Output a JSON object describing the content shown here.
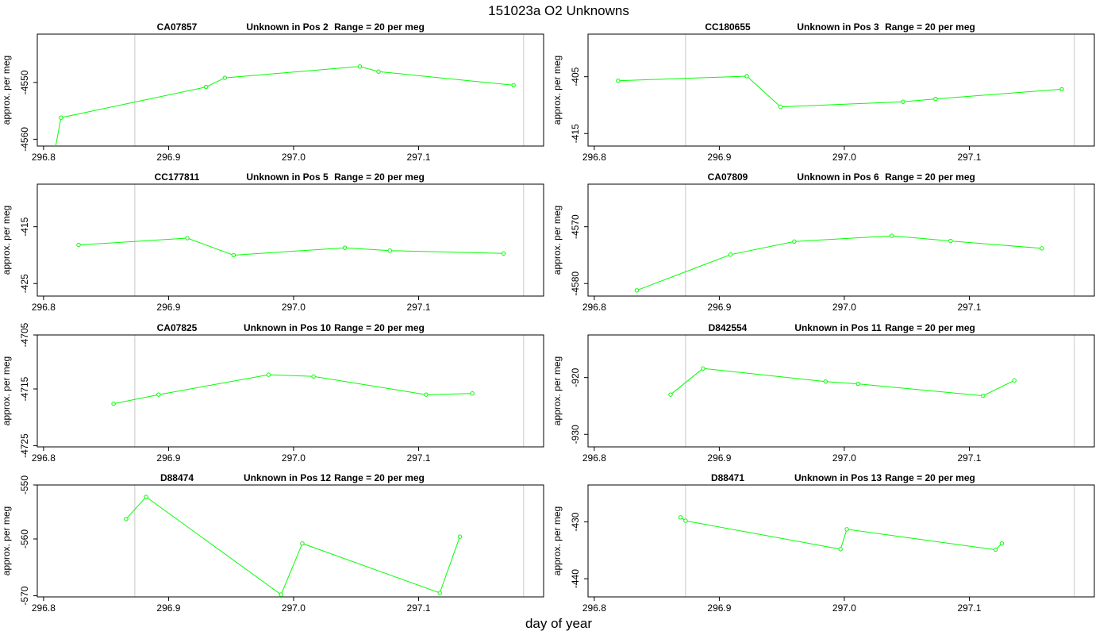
{
  "figure": {
    "title": "151023a  O2 Unknowns",
    "xlabel": "day of year"
  },
  "style": {
    "line_color": "#00ff00",
    "frame_color": "#000000",
    "vline_color": "#c8c8c8",
    "text_color": "#000000"
  },
  "chart_data": [
    {
      "type": "line",
      "title_parts": [
        "CA07857",
        "Unknown in Pos 2",
        "Range = 20 per meg"
      ],
      "ylabel": "approx. per meg",
      "xlim": [
        296.795,
        297.2
      ],
      "xticks": [
        "296.8",
        "296.9",
        "297.0",
        "297.1"
      ],
      "ylim": [
        -4561.2,
        -4541.5
      ],
      "yticks": [
        "-4550",
        "-4560"
      ],
      "vlines": [
        296.873,
        297.184
      ],
      "x": [
        296.809,
        296.814,
        296.93,
        296.945,
        297.053,
        297.068,
        297.176
      ],
      "y": [
        -4562.0,
        -4556.2,
        -4550.8,
        -4549.2,
        -4547.2,
        -4548.1,
        -4550.5
      ]
    },
    {
      "type": "line",
      "title_parts": [
        "CC180655",
        "Unknown in Pos 3",
        "Range = 20 per meg"
      ],
      "ylabel": "approx. per meg",
      "xlim": [
        296.795,
        297.2
      ],
      "xticks": [
        "296.8",
        "296.9",
        "297.0",
        "297.1"
      ],
      "ylim": [
        -417.2,
        -397.5
      ],
      "yticks": [
        "-405",
        "-415"
      ],
      "vlines": [
        296.873,
        297.184
      ],
      "x": [
        296.819,
        296.922,
        296.949,
        297.047,
        297.073,
        297.174
      ],
      "y": [
        -405.7,
        -404.9,
        -410.3,
        -409.4,
        -408.9,
        -407.2
      ]
    },
    {
      "type": "line",
      "title_parts": [
        "CC177811",
        "Unknown in Pos 5",
        "Range = 20 per meg"
      ],
      "ylabel": "approx. per meg",
      "xlim": [
        296.795,
        297.2
      ],
      "xticks": [
        "296.8",
        "296.9",
        "297.0",
        "297.1"
      ],
      "ylim": [
        -427.2,
        -407.5
      ],
      "yticks": [
        "-415",
        "-425"
      ],
      "vlines": [
        296.873,
        297.184
      ],
      "x": [
        296.828,
        296.915,
        296.952,
        297.041,
        297.077,
        297.168
      ],
      "y": [
        -418.2,
        -417.0,
        -420.0,
        -418.7,
        -419.2,
        -419.7
      ]
    },
    {
      "type": "line",
      "title_parts": [
        "CA07809",
        "Unknown in Pos 6",
        "Range = 20 per meg"
      ],
      "ylabel": "approx. per meg",
      "xlim": [
        296.795,
        297.2
      ],
      "xticks": [
        "296.8",
        "296.9",
        "297.0",
        "297.1"
      ],
      "ylim": [
        -4582.2,
        -4562.5
      ],
      "yticks": [
        "-4570",
        "-4580"
      ],
      "vlines": [
        296.873,
        297.184
      ],
      "x": [
        296.834,
        296.909,
        296.96,
        297.038,
        297.085,
        297.158
      ],
      "y": [
        -4581.2,
        -4574.9,
        -4572.6,
        -4571.6,
        -4572.5,
        -4573.8
      ]
    },
    {
      "type": "line",
      "title_parts": [
        "CA07825",
        "Unknown in Pos 10",
        "Range = 20 per meg"
      ],
      "ylabel": "approx. per meg",
      "xlim": [
        296.795,
        297.2
      ],
      "xticks": [
        "296.8",
        "296.9",
        "297.0",
        "297.1"
      ],
      "ylim": [
        -4725.2,
        -4705.5
      ],
      "yticks": [
        "-4705",
        "-4715",
        "-4725"
      ],
      "vlines": [
        296.873,
        297.184
      ],
      "x": [
        296.856,
        296.892,
        296.98,
        297.016,
        297.106,
        297.143
      ],
      "y": [
        -4717.6,
        -4716.0,
        -4712.5,
        -4712.8,
        -4716.0,
        -4715.8
      ]
    },
    {
      "type": "line",
      "title_parts": [
        "D842554",
        "Unknown in Pos 11",
        "Range = 20 per meg"
      ],
      "ylabel": "approx. per meg",
      "xlim": [
        296.795,
        297.2
      ],
      "xticks": [
        "296.8",
        "296.9",
        "297.0",
        "297.1"
      ],
      "ylim": [
        -932.2,
        -912.5
      ],
      "yticks": [
        "-920",
        "-930"
      ],
      "vlines": [
        296.873,
        297.184
      ],
      "x": [
        296.861,
        296.887,
        296.985,
        297.011,
        297.111,
        297.136
      ],
      "y": [
        -923.0,
        -918.4,
        -920.7,
        -921.1,
        -923.2,
        -920.5
      ]
    },
    {
      "type": "line",
      "title_parts": [
        "D88474",
        "Unknown in Pos 12",
        "Range = 20 per meg"
      ],
      "ylabel": "approx. per meg",
      "xlim": [
        296.795,
        297.2
      ],
      "xticks": [
        "296.8",
        "296.9",
        "297.0",
        "297.1"
      ],
      "ylim": [
        -570.2,
        -550.5
      ],
      "yticks": [
        "-550",
        "-560",
        "-570"
      ],
      "vlines": [
        296.873,
        297.184
      ],
      "x": [
        296.866,
        296.882,
        296.99,
        297.007,
        297.117,
        297.133
      ],
      "y": [
        -556.5,
        -552.6,
        -569.8,
        -560.8,
        -569.5,
        -559.6
      ]
    },
    {
      "type": "line",
      "title_parts": [
        "D88471",
        "Unknown in Pos 13",
        "Range = 20 per meg"
      ],
      "ylabel": "approx. per meg",
      "xlim": [
        296.795,
        297.2
      ],
      "xticks": [
        "296.8",
        "296.9",
        "297.0",
        "297.1"
      ],
      "ylim": [
        -443.2,
        -423.5
      ],
      "yticks": [
        "-430",
        "-440"
      ],
      "vlines": [
        296.873,
        297.184
      ],
      "x": [
        296.869,
        296.873,
        296.997,
        297.002,
        297.121,
        297.126
      ],
      "y": [
        -429.2,
        -429.8,
        -434.8,
        -431.3,
        -434.9,
        -433.8
      ]
    }
  ]
}
